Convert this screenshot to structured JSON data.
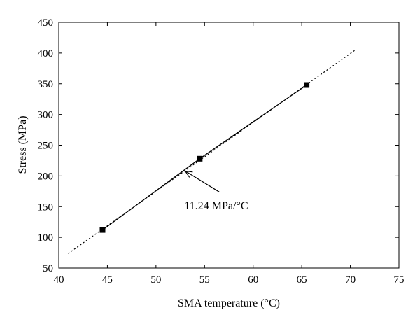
{
  "chart_data": {
    "type": "line",
    "xlabel": "SMA temperature (°C)",
    "ylabel": "Stress (MPa)",
    "xlim": [
      40,
      75
    ],
    "ylim": [
      50,
      450
    ],
    "x_ticks": [
      40,
      45,
      50,
      55,
      60,
      65,
      70,
      75
    ],
    "y_ticks": [
      50,
      100,
      150,
      200,
      250,
      300,
      350,
      400,
      450
    ],
    "grid": false,
    "series": [
      {
        "style": "solid-line-square-markers",
        "color": "#000000",
        "x": [
          44.5,
          54.5,
          65.5
        ],
        "y": [
          112,
          228,
          348
        ]
      },
      {
        "style": "dotted-line",
        "color": "#000000",
        "x": [
          41,
          70.6
        ],
        "y": [
          74,
          406
        ]
      }
    ],
    "annotations": [
      {
        "text": "11.24 MPa/°C",
        "text_at": [
          56.2,
          146
        ],
        "arrow_from": [
          56.5,
          174
        ],
        "arrow_to": [
          53,
          208
        ]
      }
    ]
  }
}
